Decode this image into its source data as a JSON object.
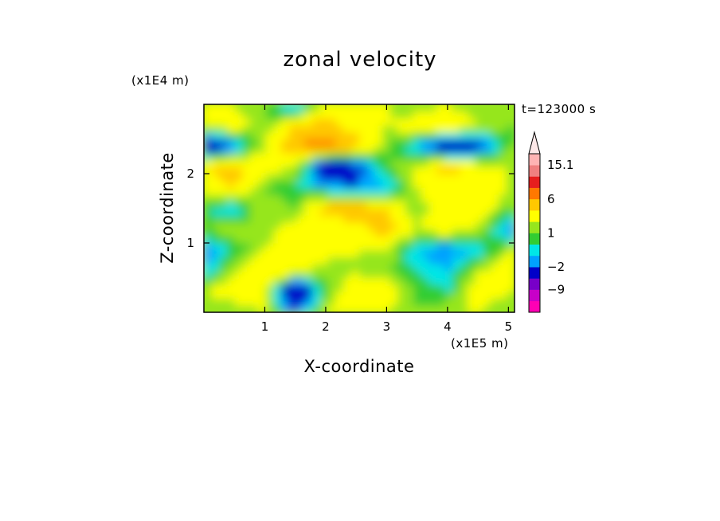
{
  "chart_data": {
    "type": "heatmap",
    "title": "zonal velocity",
    "xlabel": "X-coordinate",
    "ylabel": "Z-coordinate",
    "x_unit_label": "(x1E5 m)",
    "y_unit_label": "(x1E4 m)",
    "time_label": "t=123000 s",
    "xlim": [
      0.0,
      5.1
    ],
    "ylim": [
      0.0,
      3.0
    ],
    "x_ticks": [
      1,
      2,
      3,
      4,
      5
    ],
    "y_ticks": [
      1,
      2
    ],
    "colorbar": {
      "labels": [
        "15.1",
        "6",
        "1",
        "-2",
        "-9"
      ],
      "levels": [
        -15,
        -12,
        -9,
        -6,
        -2,
        -1,
        0,
        1,
        2,
        4,
        6,
        9,
        12,
        15.1
      ],
      "colors": [
        "#ff00b4",
        "#c800c8",
        "#7800c8",
        "#0000c8",
        "#00a0ff",
        "#00e6e6",
        "#32cd32",
        "#96e61e",
        "#ffff00",
        "#ffc800",
        "#ff7800",
        "#e61e1e",
        "#f08080",
        "#ffb4b4"
      ],
      "extend": "max"
    },
    "field_note": "",
    "field": {
      "x": [
        0.0,
        0.5,
        1.0,
        1.5,
        2.0,
        2.5,
        3.0,
        3.5,
        4.0,
        4.5,
        5.0
      ],
      "z": [
        0.0,
        0.3,
        0.6,
        0.9,
        1.2,
        1.5,
        1.8,
        2.1,
        2.4,
        2.7,
        3.0
      ],
      "u": [
        [
          1,
          1,
          2,
          -2,
          2,
          3,
          2,
          1,
          2,
          2,
          1
        ],
        [
          2,
          3,
          3,
          -6,
          1,
          3,
          3,
          1,
          0,
          3,
          2
        ],
        [
          -1,
          2,
          4,
          3,
          1,
          2,
          1,
          0,
          -1,
          2,
          3
        ],
        [
          -2,
          0,
          2,
          4,
          3,
          2,
          2,
          -1,
          -2,
          -1,
          2
        ],
        [
          1,
          2,
          1,
          3,
          2,
          3,
          5,
          2,
          3,
          2,
          -2
        ],
        [
          0,
          -1,
          2,
          1,
          5,
          6,
          4,
          1,
          4,
          3,
          1
        ],
        [
          3,
          4,
          1,
          0,
          -1,
          -2,
          -1,
          2,
          3,
          4,
          2
        ],
        [
          4,
          5,
          3,
          2,
          -5,
          -3,
          1,
          2,
          5,
          3,
          2
        ],
        [
          -5,
          -2,
          2,
          6,
          7,
          5,
          1,
          -1,
          -5,
          -3,
          1
        ],
        [
          2,
          3,
          1,
          4,
          5,
          3,
          2,
          3,
          4,
          2,
          1
        ],
        [
          3,
          2,
          1,
          -2,
          2,
          3,
          2,
          1,
          2,
          1,
          2
        ]
      ]
    }
  }
}
